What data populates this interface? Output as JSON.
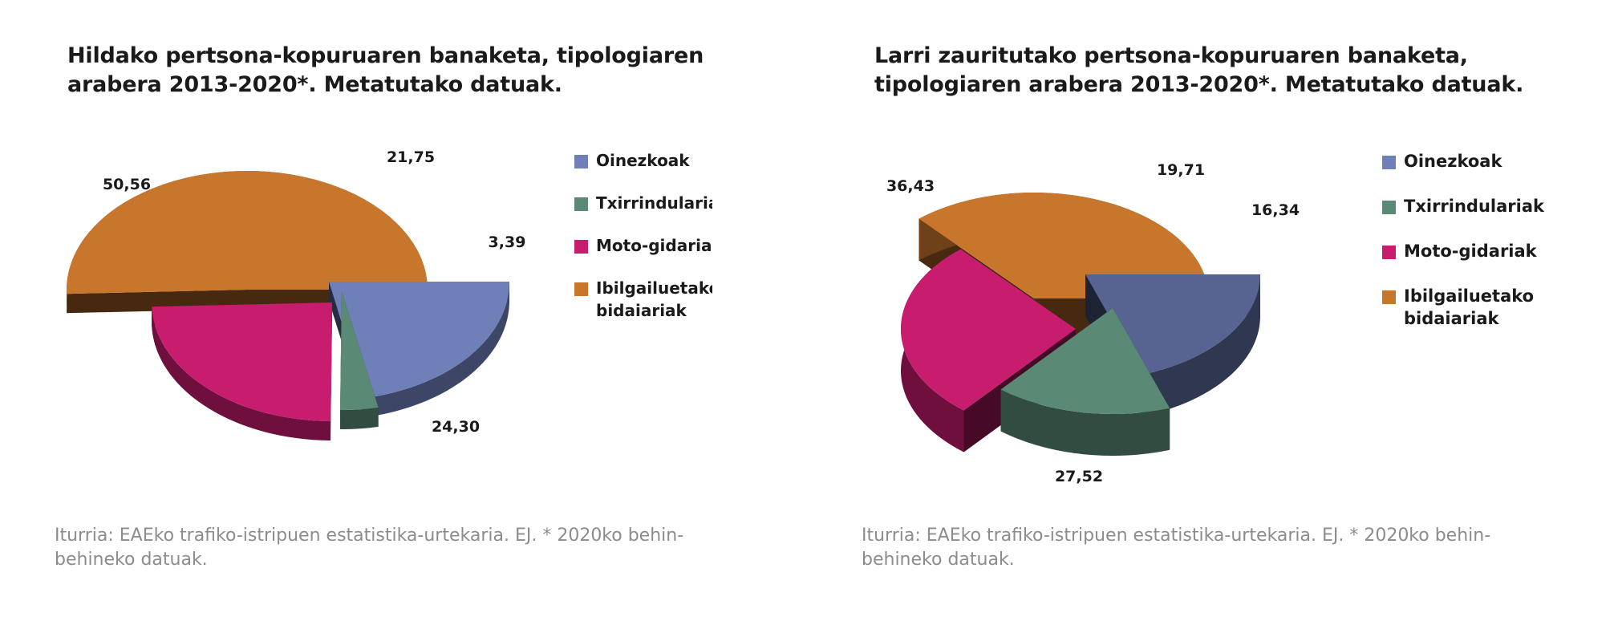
{
  "colors": {
    "oinezkoak": "#6f80b9",
    "txirrindulariak": "#5a8a76",
    "motogidariak": "#c81c6f",
    "ibilgailuetako": "#c8762c"
  },
  "chart_data": [
    {
      "type": "pie",
      "title": "Hildako pertsona-kopuruaren banaketa, tipologiaren arabera 2013-2020*. Metatutako datuak.",
      "categories": [
        "Oinezkoak",
        "Txirrindulariak",
        "Moto-gidariak",
        "Ibilgailuetako bidaiariak"
      ],
      "values": [
        21.75,
        3.39,
        24.3,
        50.56
      ],
      "value_labels": [
        "21,75",
        "3,39",
        "24,30",
        "50,56"
      ],
      "colors": [
        "#6f80b9",
        "#5a8a76",
        "#c81c6f",
        "#c8762c"
      ],
      "style": "3d-exploded",
      "legend": "right"
    },
    {
      "type": "pie",
      "title": "Larri zauritutako pertsona-kopuruaren banaketa, tipologiaren arabera 2013-2020*. Metatutako datuak.",
      "categories": [
        "Oinezkoak",
        "Txirrindulariak",
        "Moto-gidariak",
        "Ibilgailuetako bidaiariak"
      ],
      "values": [
        19.71,
        16.34,
        27.52,
        36.43
      ],
      "value_labels": [
        "19,71",
        "16,34",
        "27,52",
        "36,43"
      ],
      "colors": [
        "#576491",
        "#5a8a76",
        "#c81c6f",
        "#c8762c"
      ],
      "style": "3d-exploded",
      "legend": "right"
    }
  ],
  "charts": [
    {
      "title": "Hildako pertsona-kopuruaren banaketa, tipologiaren arabera 2013-2020*. Metatutako datuak.",
      "legend": [
        "Oinezkoak",
        "Txirrindulariak",
        "Moto-gidariak",
        "Ibilgailuetako bidaiariak"
      ],
      "source": "Iturria: EAEko trafiko-istripuen estatistika-urtekaria. EJ. * 2020ko behin-behineko datuak."
    },
    {
      "title": "Larri zauritutako pertsona-kopuruaren banaketa, tipologiaren arabera 2013-2020*. Metatutako datuak.",
      "legend": [
        "Oinezkoak",
        "Txirrindulariak",
        "Moto-gidariak",
        "Ibilgailuetako bidaiariak"
      ],
      "source": "Iturria: EAEko trafiko-istripuen estatistika-urtekaria. EJ. * 2020ko behin-behineko datuak."
    }
  ]
}
